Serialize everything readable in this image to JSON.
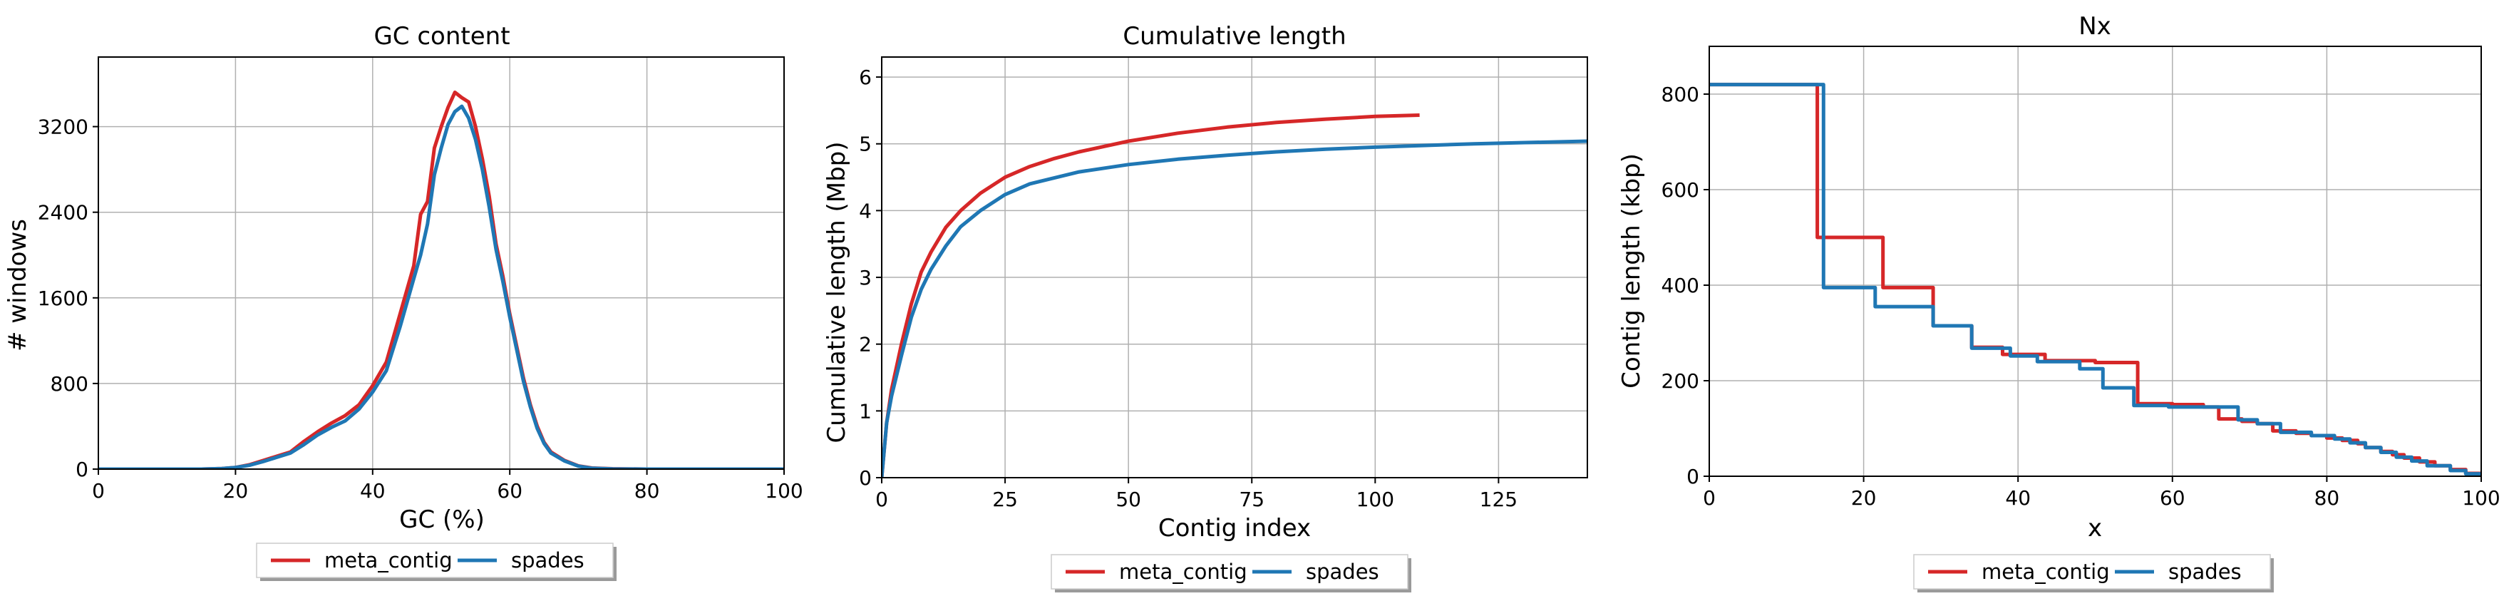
{
  "colors": {
    "meta_contig": "#d62728",
    "spades": "#1f77b4",
    "grid": "#b0b0b0"
  },
  "chart_data": [
    {
      "type": "line",
      "title": "GC content",
      "xlabel": "GC (%)",
      "ylabel": "# windows",
      "xlim": [
        0,
        100
      ],
      "ylim": [
        0,
        3850
      ],
      "xticks": [
        0,
        20,
        40,
        60,
        80,
        100
      ],
      "yticks": [
        0,
        800,
        1600,
        2400,
        3200
      ],
      "grid": true,
      "legend": {
        "placement": "below",
        "entries": [
          "meta_contig",
          "spades"
        ]
      },
      "series": [
        {
          "name": "meta_contig",
          "color": "#d62728",
          "points": [
            [
              0,
              0
            ],
            [
              15,
              0
            ],
            [
              18,
              5
            ],
            [
              20,
              15
            ],
            [
              22,
              40
            ],
            [
              24,
              80
            ],
            [
              26,
              120
            ],
            [
              28,
              160
            ],
            [
              30,
              260
            ],
            [
              32,
              350
            ],
            [
              34,
              430
            ],
            [
              36,
              500
            ],
            [
              38,
              600
            ],
            [
              40,
              780
            ],
            [
              42,
              1000
            ],
            [
              44,
              1450
            ],
            [
              46,
              1900
            ],
            [
              47,
              2380
            ],
            [
              48,
              2500
            ],
            [
              49,
              3000
            ],
            [
              50,
              3200
            ],
            [
              51,
              3380
            ],
            [
              52,
              3520
            ],
            [
              53,
              3470
            ],
            [
              54,
              3430
            ],
            [
              55,
              3200
            ],
            [
              56,
              2900
            ],
            [
              57,
              2550
            ],
            [
              58,
              2100
            ],
            [
              59,
              1800
            ],
            [
              60,
              1450
            ],
            [
              61,
              1150
            ],
            [
              62,
              850
            ],
            [
              63,
              600
            ],
            [
              64,
              400
            ],
            [
              65,
              250
            ],
            [
              66,
              160
            ],
            [
              68,
              80
            ],
            [
              70,
              30
            ],
            [
              72,
              10
            ],
            [
              75,
              3
            ],
            [
              80,
              0
            ],
            [
              100,
              0
            ]
          ]
        },
        {
          "name": "spades",
          "color": "#1f77b4",
          "points": [
            [
              0,
              0
            ],
            [
              15,
              0
            ],
            [
              18,
              5
            ],
            [
              20,
              15
            ],
            [
              22,
              35
            ],
            [
              24,
              70
            ],
            [
              26,
              110
            ],
            [
              28,
              150
            ],
            [
              30,
              230
            ],
            [
              32,
              320
            ],
            [
              34,
              390
            ],
            [
              36,
              450
            ],
            [
              38,
              560
            ],
            [
              40,
              720
            ],
            [
              42,
              920
            ],
            [
              44,
              1330
            ],
            [
              46,
              1780
            ],
            [
              47,
              2000
            ],
            [
              48,
              2290
            ],
            [
              49,
              2750
            ],
            [
              50,
              3000
            ],
            [
              51,
              3220
            ],
            [
              52,
              3340
            ],
            [
              53,
              3390
            ],
            [
              54,
              3280
            ],
            [
              55,
              3080
            ],
            [
              56,
              2800
            ],
            [
              57,
              2450
            ],
            [
              58,
              2050
            ],
            [
              59,
              1750
            ],
            [
              60,
              1420
            ],
            [
              61,
              1120
            ],
            [
              62,
              820
            ],
            [
              63,
              580
            ],
            [
              64,
              380
            ],
            [
              65,
              240
            ],
            [
              66,
              150
            ],
            [
              68,
              75
            ],
            [
              70,
              28
            ],
            [
              72,
              8
            ],
            [
              75,
              2
            ],
            [
              80,
              0
            ],
            [
              100,
              0
            ]
          ]
        }
      ]
    },
    {
      "type": "line",
      "title": "Cumulative length",
      "xlabel": "Contig index",
      "ylabel": "Cumulative length (Mbp)",
      "xlim": [
        0,
        143
      ],
      "ylim": [
        0,
        6.3
      ],
      "xticks": [
        0,
        25,
        50,
        75,
        100,
        125
      ],
      "yticks": [
        0,
        1,
        2,
        3,
        4,
        5,
        6
      ],
      "grid": true,
      "legend": {
        "placement": "below",
        "entries": [
          "meta_contig",
          "spades"
        ]
      },
      "series": [
        {
          "name": "meta_contig",
          "color": "#d62728",
          "points": [
            [
              0,
              0
            ],
            [
              1,
              0.82
            ],
            [
              2,
              1.32
            ],
            [
              4,
              2.0
            ],
            [
              6,
              2.6
            ],
            [
              8,
              3.08
            ],
            [
              10,
              3.38
            ],
            [
              13,
              3.75
            ],
            [
              16,
              4.0
            ],
            [
              20,
              4.26
            ],
            [
              25,
              4.5
            ],
            [
              30,
              4.66
            ],
            [
              35,
              4.78
            ],
            [
              40,
              4.88
            ],
            [
              50,
              5.04
            ],
            [
              60,
              5.16
            ],
            [
              70,
              5.25
            ],
            [
              80,
              5.32
            ],
            [
              90,
              5.37
            ],
            [
              100,
              5.41
            ],
            [
              109,
              5.43
            ]
          ]
        },
        {
          "name": "spades",
          "color": "#1f77b4",
          "points": [
            [
              0,
              0
            ],
            [
              1,
              0.82
            ],
            [
              2,
              1.22
            ],
            [
              4,
              1.83
            ],
            [
              6,
              2.4
            ],
            [
              8,
              2.82
            ],
            [
              10,
              3.12
            ],
            [
              13,
              3.47
            ],
            [
              16,
              3.76
            ],
            [
              20,
              4.0
            ],
            [
              25,
              4.24
            ],
            [
              30,
              4.4
            ],
            [
              40,
              4.58
            ],
            [
              50,
              4.69
            ],
            [
              60,
              4.77
            ],
            [
              70,
              4.83
            ],
            [
              80,
              4.88
            ],
            [
              90,
              4.92
            ],
            [
              100,
              4.95
            ],
            [
              120,
              5.0
            ],
            [
              143,
              5.04
            ]
          ]
        }
      ]
    },
    {
      "type": "line",
      "title": "Nx",
      "xlabel": "x",
      "ylabel": "Contig length (kbp)",
      "xlim": [
        0,
        100
      ],
      "ylim": [
        0,
        900
      ],
      "xticks": [
        0,
        20,
        40,
        60,
        80,
        100
      ],
      "yticks": [
        0,
        200,
        400,
        600,
        800
      ],
      "grid": true,
      "legend": {
        "placement": "below",
        "entries": [
          "meta_contig",
          "spades"
        ]
      },
      "series": [
        {
          "name": "meta_contig",
          "color": "#d62728",
          "points": [
            [
              0,
              820
            ],
            [
              14,
              820
            ],
            [
              14,
              500
            ],
            [
              22.5,
              500
            ],
            [
              22.5,
              395
            ],
            [
              29,
              395
            ],
            [
              29,
              315
            ],
            [
              34,
              315
            ],
            [
              34,
              270
            ],
            [
              38,
              270
            ],
            [
              38,
              255
            ],
            [
              43.5,
              255
            ],
            [
              43.5,
              242
            ],
            [
              50,
              242
            ],
            [
              50,
              238
            ],
            [
              55.5,
              238
            ],
            [
              55.5,
              152
            ],
            [
              60,
              152
            ],
            [
              60,
              150
            ],
            [
              64,
              150
            ],
            [
              64,
              145
            ],
            [
              66,
              145
            ],
            [
              66,
              120
            ],
            [
              69,
              120
            ],
            [
              69,
              115
            ],
            [
              71,
              115
            ],
            [
              71,
              110
            ],
            [
              73,
              110
            ],
            [
              73,
              95
            ],
            [
              76,
              95
            ],
            [
              76,
              90
            ],
            [
              78,
              90
            ],
            [
              78,
              85
            ],
            [
              80,
              85
            ],
            [
              80,
              80
            ],
            [
              82,
              80
            ],
            [
              82,
              75
            ],
            [
              84,
              75
            ],
            [
              84,
              68
            ],
            [
              85,
              68
            ],
            [
              85,
              60
            ],
            [
              87,
              60
            ],
            [
              87,
              52
            ],
            [
              88.5,
              52
            ],
            [
              88.5,
              45
            ],
            [
              90,
              45
            ],
            [
              90,
              38
            ],
            [
              92,
              38
            ],
            [
              92,
              30
            ],
            [
              94,
              30
            ],
            [
              94,
              22
            ],
            [
              96,
              22
            ],
            [
              96,
              14
            ],
            [
              98,
              14
            ],
            [
              98,
              6
            ],
            [
              100,
              6
            ],
            [
              100,
              0
            ]
          ]
        },
        {
          "name": "spades",
          "color": "#1f77b4",
          "points": [
            [
              0,
              820
            ],
            [
              14.8,
              820
            ],
            [
              14.8,
              395
            ],
            [
              21.5,
              395
            ],
            [
              21.5,
              355
            ],
            [
              29,
              355
            ],
            [
              29,
              315
            ],
            [
              34,
              315
            ],
            [
              34,
              268
            ],
            [
              39,
              268
            ],
            [
              39,
              252
            ],
            [
              42.5,
              252
            ],
            [
              42.5,
              240
            ],
            [
              48,
              240
            ],
            [
              48,
              225
            ],
            [
              51,
              225
            ],
            [
              51,
              185
            ],
            [
              55,
              185
            ],
            [
              55,
              148
            ],
            [
              59.5,
              148
            ],
            [
              59.5,
              145
            ],
            [
              68.5,
              145
            ],
            [
              68.5,
              118
            ],
            [
              71,
              118
            ],
            [
              71,
              110
            ],
            [
              74,
              110
            ],
            [
              74,
              92
            ],
            [
              78,
              92
            ],
            [
              78,
              85
            ],
            [
              81,
              85
            ],
            [
              81,
              78
            ],
            [
              83,
              78
            ],
            [
              83,
              70
            ],
            [
              85,
              70
            ],
            [
              85,
              60
            ],
            [
              87,
              60
            ],
            [
              87,
              50
            ],
            [
              89,
              50
            ],
            [
              89,
              40
            ],
            [
              91,
              40
            ],
            [
              91,
              32
            ],
            [
              93,
              32
            ],
            [
              93,
              22
            ],
            [
              96,
              22
            ],
            [
              96,
              12
            ],
            [
              98,
              12
            ],
            [
              98,
              5
            ],
            [
              100,
              5
            ],
            [
              100,
              0
            ]
          ]
        }
      ]
    }
  ]
}
